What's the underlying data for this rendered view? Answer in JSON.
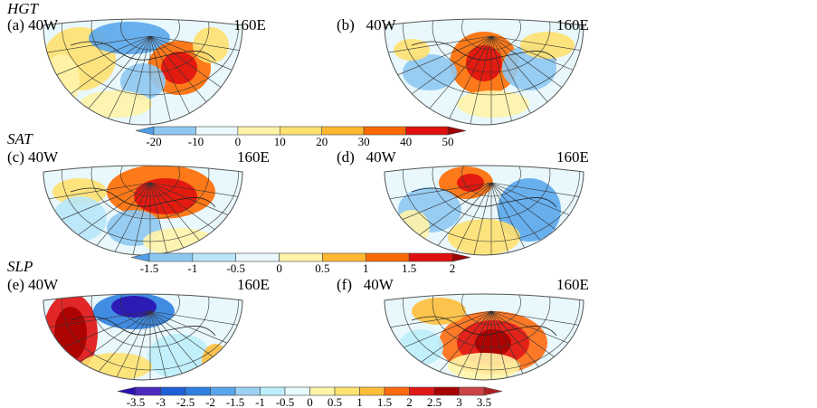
{
  "rows": [
    {
      "var": "HGT",
      "left": {
        "label": "(a)",
        "lon_left": "40W",
        "lon_right": "160E"
      },
      "right": {
        "label": "(b)",
        "lon_left": "40W",
        "lon_right": "160E"
      }
    },
    {
      "var": "SAT",
      "left": {
        "label": "(c)",
        "lon_left": "40W",
        "lon_right": "160E"
      },
      "right": {
        "label": "(d)",
        "lon_left": "40W",
        "lon_right": "160E"
      }
    },
    {
      "var": "SLP",
      "left": {
        "label": "(e)",
        "lon_left": "40W",
        "lon_right": "160E"
      },
      "right": {
        "label": "(f)",
        "lon_left": "40W",
        "lon_right": "160E"
      }
    }
  ],
  "colorbars": [
    {
      "ticks": [
        "-20",
        "-10",
        "0",
        "10",
        "20",
        "30",
        "40",
        "50"
      ],
      "colors": [
        "#4f9fe8",
        "#8ec8f2",
        "#e8f8fc",
        "#fff3a8",
        "#ffe070",
        "#ffb830",
        "#ff6a00",
        "#e01010",
        "#a00000"
      ]
    },
    {
      "ticks": [
        "-1.5",
        "-1",
        "-0.5",
        "0",
        "0.5",
        "1",
        "1.5",
        "2"
      ],
      "colors": [
        "#4f9fe8",
        "#8ec8f2",
        "#b8e6f8",
        "#e8f8fc",
        "#fff3a8",
        "#ffb830",
        "#ff6a00",
        "#e01010",
        "#a00000"
      ]
    },
    {
      "ticks": [
        "-3.5",
        "-3",
        "-2.5",
        "-2",
        "-1.5",
        "-1",
        "-0.5",
        "0",
        "0.5",
        "1",
        "1.5",
        "2",
        "2.5",
        "3",
        "3.5"
      ],
      "colors": [
        "#2a10b0",
        "#4a2cc0",
        "#1e5ed6",
        "#2f7fe0",
        "#5aa6ec",
        "#9cd0f4",
        "#bdeefa",
        "#e8fbff",
        "#fff5a8",
        "#ffe270",
        "#ffbe3a",
        "#ff6a10",
        "#e01818",
        "#a80000",
        "#cc4444",
        "#b02020"
      ]
    }
  ]
}
